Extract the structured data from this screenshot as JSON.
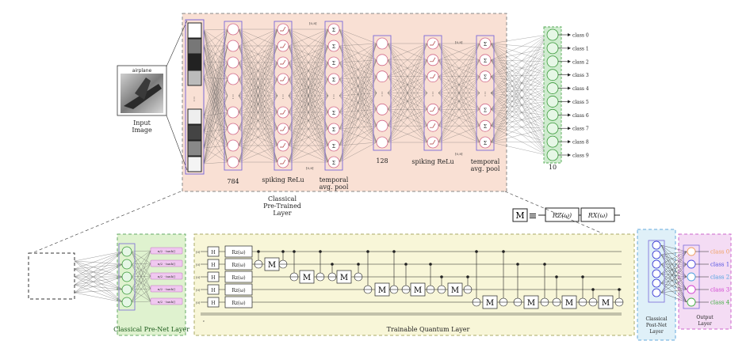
{
  "input": {
    "caption": "airplane",
    "label_line1": "Input",
    "label_line2": "Image"
  },
  "classical_net": {
    "title_line1": "Classical",
    "title_line2": "Pre-Trained",
    "title_line3": "Layer",
    "layer_784": "784",
    "layer_128": "128",
    "layer_10": "10",
    "spiking_relu_1": "spiking ReLu",
    "spiking_relu_2": "spiking ReLu",
    "pool1_line1": "temporal",
    "pool1_line2": "avg. pool",
    "pool2_line1": "temporal",
    "pool2_line2": "avg. pool",
    "dims_a": "[0,8]",
    "dims_b": "[0,8]",
    "dims_c": "[0,8]",
    "dims_d": "[0,8]",
    "sigma": "Σ",
    "outputs": [
      "class 0",
      "class 1",
      "class 2",
      "class 3",
      "class 4",
      "class 5",
      "class 6",
      "class 7",
      "class 8",
      "class 9"
    ]
  },
  "prenet": {
    "title": "Classical Pre-Net Layer",
    "activation": "π/2 · tanh()"
  },
  "quantum": {
    "title": "Trainable Quantum Layer",
    "qubit_label": "|0⟩",
    "h_gate": "H",
    "rz_gate": "Rz(ω)",
    "m_gate": "M",
    "classical_reg": "c",
    "definition_lhs": "M",
    "definition_equiv": "≡",
    "definition_rz": "RZ(ω)",
    "definition_rx": "RX(ω)"
  },
  "postnet": {
    "title_line1": "Classical",
    "title_line2": "Post-Net",
    "title_line3": "Layer"
  },
  "output_layer": {
    "title_line1": "Output",
    "title_line2": "Layer",
    "classes": [
      "class 0",
      "class 1",
      "class 2",
      "class 3",
      "class 4"
    ],
    "class_colors": [
      "#f0a060",
      "#5050e0",
      "#4aa0e0",
      "#d040d0",
      "#40b040"
    ]
  },
  "colors": {
    "classical_bg": "#f9e0d4",
    "prenet_bg": "#dff2cf",
    "quantum_bg": "#f8f6d8",
    "postnet_bg": "#dff0f8",
    "output_bg": "#f4dcf4",
    "layer_box": "#7a68d8",
    "neuron": "#d26a8a",
    "green_neuron": "#3a9a3a"
  }
}
